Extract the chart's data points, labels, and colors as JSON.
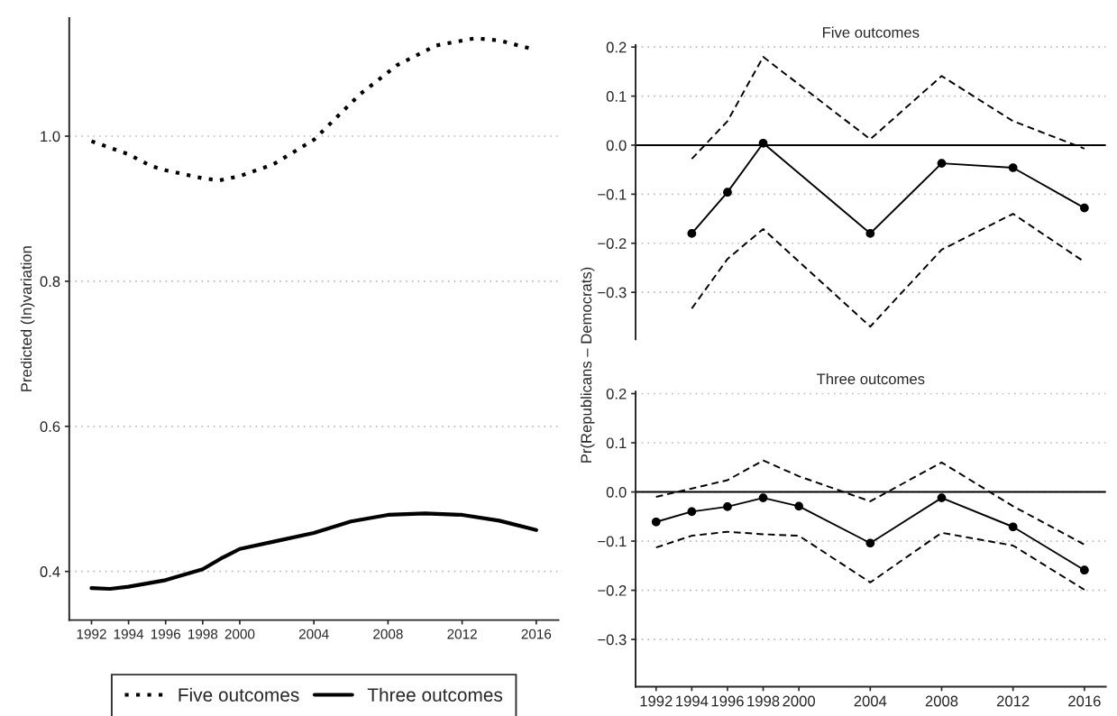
{
  "chart_data": [
    {
      "type": "line",
      "ylabel": "Predicted (In)variation",
      "xlim": [
        1990.8,
        2017.2
      ],
      "ylim": [
        0.333,
        1.163
      ],
      "xticks": [
        1992,
        1994,
        1996,
        1998,
        2000,
        2004,
        2008,
        2012,
        2016
      ],
      "yticks": [
        {
          "value": 0.4,
          "label": "0.4"
        },
        {
          "value": 0.6,
          "label": "0.6"
        },
        {
          "value": 0.8,
          "label": "0.8"
        },
        {
          "value": 1.0,
          "label": "1.0"
        }
      ],
      "grid": "y",
      "legend": "bottom",
      "marker": "none",
      "series": [
        {
          "name": "Five outcomes",
          "color": "#000000",
          "line_style": "dotted",
          "x": [
            1992,
            1994,
            1995.2,
            1996,
            1998,
            1998.9,
            2000,
            2001.8,
            2004,
            2004.2,
            2006.5,
            2008.5,
            2010.6,
            2012.7,
            2014,
            2015.8
          ],
          "values": [
            0.993,
            0.975,
            0.959,
            0.953,
            0.942,
            0.939,
            0.945,
            0.961,
            0.995,
            1.0,
            1.058,
            1.098,
            1.125,
            1.135,
            1.132,
            1.12
          ]
        },
        {
          "name": "Three outcomes",
          "color": "#000000",
          "line_style": "solid",
          "x": [
            1992,
            1993,
            1994,
            1996,
            1998,
            1999,
            2000,
            2002,
            2004,
            2006,
            2008,
            2010,
            2012,
            2014,
            2016
          ],
          "values": [
            0.377,
            0.376,
            0.379,
            0.388,
            0.403,
            0.418,
            0.431,
            0.442,
            0.453,
            0.469,
            0.478,
            0.48,
            0.478,
            0.47,
            0.457
          ]
        }
      ]
    },
    {
      "type": "line",
      "title": "Five outcomes",
      "xlim": [
        1990.85,
        2017.2
      ],
      "ylim": [
        -0.396,
        0.204
      ],
      "tick_labels": "y",
      "yticks": [
        {
          "value": -0.3,
          "label": "−0.3"
        },
        {
          "value": -0.2,
          "label": "−0.2"
        },
        {
          "value": -0.1,
          "label": "−0.1"
        },
        {
          "value": 0.0,
          "label": "0.0"
        },
        {
          "value": 0.1,
          "label": "0.1"
        },
        {
          "value": 0.2,
          "label": "0.2"
        }
      ],
      "grid": "y",
      "ref_lines": [
        {
          "axis": "y",
          "value": 0,
          "color": "#000000",
          "line_style": "solid"
        }
      ],
      "x": [
        1994,
        1996,
        1998,
        2004,
        2008,
        2012,
        2016
      ],
      "series": [
        {
          "color": "#000000",
          "marker": "circle",
          "line_style": "solid",
          "values": [
            -0.18,
            -0.096,
            0.004,
            -0.18,
            -0.037,
            -0.046,
            -0.128
          ]
        },
        {
          "color": "#000000",
          "marker": "none",
          "line_style": "dashed",
          "values": [
            -0.028,
            0.049,
            0.18,
            0.012,
            0.141,
            0.049,
            -0.007
          ]
        },
        {
          "color": "#000000",
          "marker": "none",
          "line_style": "dashed",
          "values": [
            -0.333,
            -0.232,
            -0.171,
            -0.37,
            -0.213,
            -0.14,
            -0.238
          ]
        }
      ]
    },
    {
      "type": "line",
      "title": "Three outcomes",
      "ylabel": "Pr(Republicans – Democrats)",
      "xlim": [
        1990.85,
        2017.2
      ],
      "ylim": [
        -0.396,
        0.204
      ],
      "xticks": [
        1992,
        1994,
        1996,
        1998,
        2000,
        2004,
        2008,
        2012,
        2016
      ],
      "yticks": [
        {
          "value": -0.3,
          "label": "−0.3"
        },
        {
          "value": -0.2,
          "label": "−0.2"
        },
        {
          "value": -0.1,
          "label": "−0.1"
        },
        {
          "value": 0.0,
          "label": "0.0"
        },
        {
          "value": 0.1,
          "label": "0.1"
        },
        {
          "value": 0.2,
          "label": "0.2"
        }
      ],
      "grid": "y",
      "ref_lines": [
        {
          "axis": "y",
          "value": 0,
          "color": "#000000",
          "line_style": "solid"
        }
      ],
      "x": [
        1992,
        1994,
        1996,
        1998,
        2000,
        2004,
        2008,
        2012,
        2016
      ],
      "series": [
        {
          "color": "#000000",
          "marker": "circle",
          "line_style": "solid",
          "values": [
            -0.061,
            -0.04,
            -0.03,
            -0.012,
            -0.029,
            -0.104,
            -0.012,
            -0.071,
            -0.159
          ]
        },
        {
          "color": "#000000",
          "marker": "none",
          "line_style": "dashed",
          "values": [
            -0.01,
            0.007,
            0.024,
            0.064,
            0.032,
            -0.019,
            0.06,
            -0.029,
            -0.107
          ]
        },
        {
          "color": "#000000",
          "marker": "none",
          "line_style": "dashed",
          "values": [
            -0.113,
            -0.089,
            -0.081,
            -0.086,
            -0.089,
            -0.184,
            -0.083,
            -0.109,
            -0.199
          ]
        }
      ]
    }
  ]
}
